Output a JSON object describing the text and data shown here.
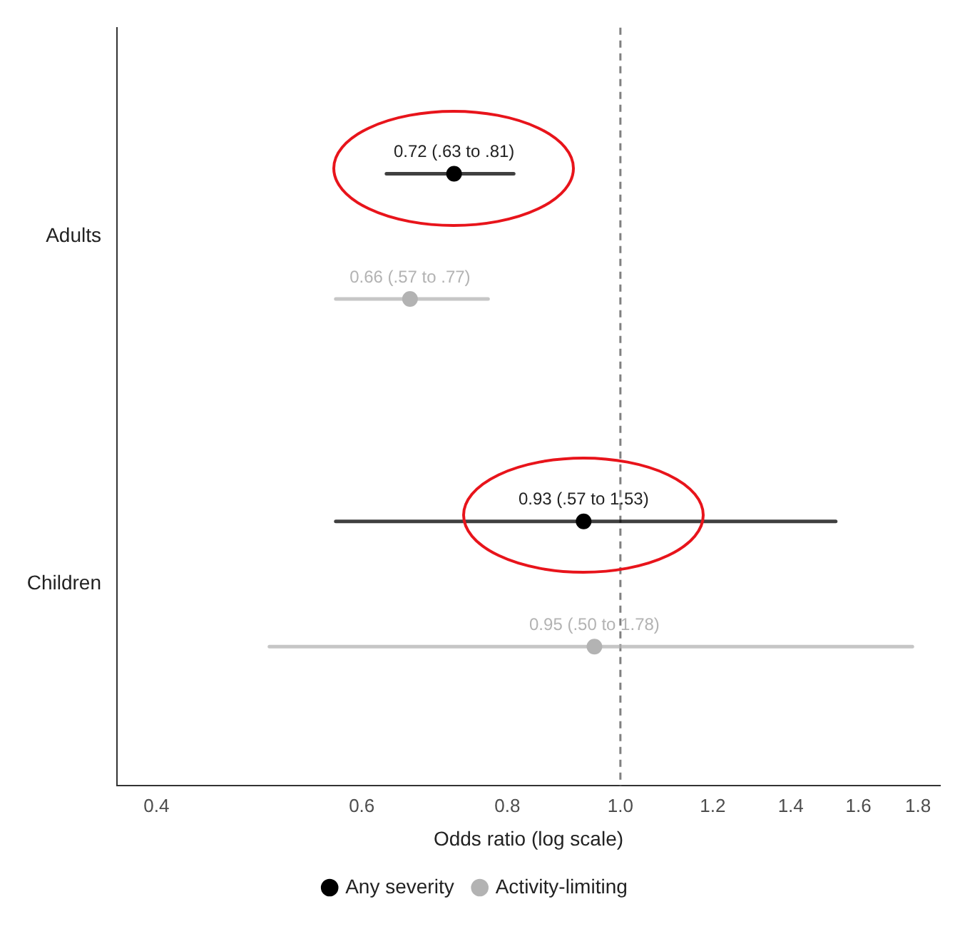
{
  "chart_data": {
    "type": "scatter",
    "orientation": "horizontal",
    "categories": [
      "Adults",
      "Children"
    ],
    "xlabel": "Odds ratio (log scale)",
    "log": "x",
    "xlim": [
      0.37,
      1.88
    ],
    "xticks": [
      0.4,
      0.6,
      0.8,
      {
        "value": 1,
        "label": "1.0"
      },
      1.2,
      1.4,
      1.6,
      1.8
    ],
    "series": [
      {
        "name": "Any severity",
        "color": "#000000",
        "values": [
          0.72,
          0.93
        ],
        "errors": [
          [
            0.63,
            0.81
          ],
          [
            0.57,
            1.53
          ]
        ],
        "value_labels": [
          "0.72 (.63 to .81)",
          "0.93 (.57 to 1.53)"
        ]
      },
      {
        "name": "Activity-limiting",
        "color": "#b3b3b3",
        "values": [
          0.66,
          0.95
        ],
        "errors": [
          [
            0.57,
            0.77
          ],
          [
            0.5,
            1.78
          ]
        ],
        "value_labels": [
          "0.66 (.57 to .77)",
          "0.95 (.50 to 1.78)"
        ]
      }
    ],
    "ref_lines": [
      {
        "axis": "x",
        "value": 1,
        "color": "#808080",
        "line_style": "dashed"
      }
    ],
    "legend": "bottom",
    "marker": "circle",
    "grid": false
  }
}
